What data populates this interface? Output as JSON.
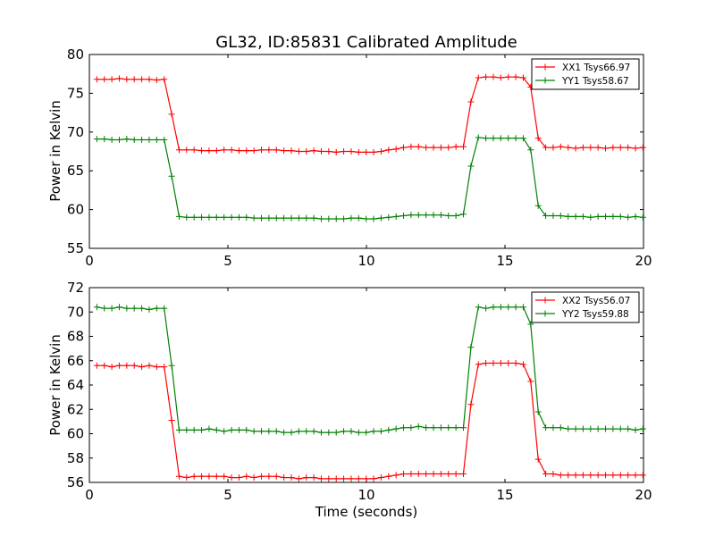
{
  "title": "GL32, ID:85831 Calibrated Amplitude",
  "chart_data": [
    {
      "type": "line",
      "title": "GL32, ID:85831 Calibrated Amplitude",
      "xlabel": "",
      "ylabel": "Power in Kelvin",
      "xlim": [
        0,
        20
      ],
      "ylim": [
        55,
        80
      ],
      "xticks": [
        "0",
        "5",
        "10",
        "15",
        "20"
      ],
      "yticks": [
        "55",
        "60",
        "65",
        "70",
        "75",
        "80"
      ],
      "legend_position": "top-right",
      "grid": false,
      "x": [
        0.27,
        0.54,
        0.81,
        1.08,
        1.35,
        1.62,
        1.89,
        2.16,
        2.43,
        2.7,
        2.97,
        3.24,
        3.51,
        3.78,
        4.05,
        4.32,
        4.59,
        4.86,
        5.13,
        5.4,
        5.67,
        5.94,
        6.21,
        6.48,
        6.75,
        7.02,
        7.29,
        7.56,
        7.83,
        8.1,
        8.37,
        8.64,
        8.91,
        9.18,
        9.45,
        9.72,
        9.99,
        10.26,
        10.53,
        10.8,
        11.07,
        11.34,
        11.61,
        11.88,
        12.15,
        12.42,
        12.69,
        12.96,
        13.23,
        13.5,
        13.77,
        14.04,
        14.31,
        14.58,
        14.85,
        15.12,
        15.39,
        15.66,
        15.93,
        16.2,
        16.47,
        16.74,
        17.01,
        17.28,
        17.55,
        17.82,
        18.09,
        18.36,
        18.63,
        18.9,
        19.17,
        19.44,
        19.71,
        19.98
      ],
      "series": [
        {
          "name": "XX1 Tsys66.97",
          "color": "#ff0000",
          "values": [
            76.8,
            76.8,
            76.8,
            76.9,
            76.8,
            76.8,
            76.8,
            76.8,
            76.7,
            76.8,
            72.3,
            67.7,
            67.7,
            67.7,
            67.6,
            67.6,
            67.6,
            67.7,
            67.7,
            67.6,
            67.6,
            67.6,
            67.7,
            67.7,
            67.7,
            67.6,
            67.6,
            67.5,
            67.5,
            67.6,
            67.5,
            67.5,
            67.4,
            67.5,
            67.5,
            67.4,
            67.4,
            67.4,
            67.5,
            67.7,
            67.8,
            68.0,
            68.1,
            68.1,
            68.0,
            68.0,
            68.0,
            68.0,
            68.1,
            68.1,
            73.9,
            77.0,
            77.1,
            77.1,
            77.0,
            77.1,
            77.1,
            77.0,
            75.8,
            69.2,
            68.0,
            68.0,
            68.1,
            68.0,
            67.9,
            68.0,
            68.0,
            68.0,
            67.9,
            68.0,
            68.0,
            68.0,
            67.9,
            68.0
          ]
        },
        {
          "name": "YY1 Tsys58.67",
          "color": "#008000",
          "values": [
            69.1,
            69.1,
            69.0,
            69.0,
            69.1,
            69.0,
            69.0,
            69.0,
            69.0,
            69.0,
            64.3,
            59.1,
            59.0,
            59.0,
            59.0,
            59.0,
            59.0,
            59.0,
            59.0,
            59.0,
            59.0,
            58.9,
            58.9,
            58.9,
            58.9,
            58.9,
            58.9,
            58.9,
            58.9,
            58.9,
            58.8,
            58.8,
            58.8,
            58.8,
            58.9,
            58.9,
            58.8,
            58.8,
            58.9,
            59.0,
            59.1,
            59.2,
            59.3,
            59.3,
            59.3,
            59.3,
            59.3,
            59.2,
            59.2,
            59.4,
            65.6,
            69.3,
            69.2,
            69.2,
            69.2,
            69.2,
            69.2,
            69.2,
            67.7,
            60.5,
            59.2,
            59.2,
            59.2,
            59.1,
            59.1,
            59.1,
            59.0,
            59.1,
            59.1,
            59.1,
            59.1,
            59.0,
            59.1,
            59.0
          ]
        }
      ]
    },
    {
      "type": "line",
      "title": "",
      "xlabel": "Time (seconds)",
      "ylabel": "Power in Kelvin",
      "xlim": [
        0,
        20
      ],
      "ylim": [
        56,
        72
      ],
      "xticks": [
        "0",
        "5",
        "10",
        "15",
        "20"
      ],
      "yticks": [
        "56",
        "58",
        "60",
        "62",
        "64",
        "66",
        "68",
        "70",
        "72"
      ],
      "legend_position": "top-right",
      "grid": false,
      "x": [
        0.27,
        0.54,
        0.81,
        1.08,
        1.35,
        1.62,
        1.89,
        2.16,
        2.43,
        2.7,
        2.97,
        3.24,
        3.51,
        3.78,
        4.05,
        4.32,
        4.59,
        4.86,
        5.13,
        5.4,
        5.67,
        5.94,
        6.21,
        6.48,
        6.75,
        7.02,
        7.29,
        7.56,
        7.83,
        8.1,
        8.37,
        8.64,
        8.91,
        9.18,
        9.45,
        9.72,
        9.99,
        10.26,
        10.53,
        10.8,
        11.07,
        11.34,
        11.61,
        11.88,
        12.15,
        12.42,
        12.69,
        12.96,
        13.23,
        13.5,
        13.77,
        14.04,
        14.31,
        14.58,
        14.85,
        15.12,
        15.39,
        15.66,
        15.93,
        16.2,
        16.47,
        16.74,
        17.01,
        17.28,
        17.55,
        17.82,
        18.09,
        18.36,
        18.63,
        18.9,
        19.17,
        19.44,
        19.71,
        19.98
      ],
      "series": [
        {
          "name": "XX2 Tsys56.07",
          "color": "#ff0000",
          "values": [
            65.6,
            65.6,
            65.5,
            65.6,
            65.6,
            65.6,
            65.5,
            65.6,
            65.5,
            65.5,
            61.1,
            56.5,
            56.4,
            56.5,
            56.5,
            56.5,
            56.5,
            56.5,
            56.4,
            56.4,
            56.5,
            56.4,
            56.5,
            56.5,
            56.5,
            56.4,
            56.4,
            56.3,
            56.4,
            56.4,
            56.3,
            56.3,
            56.3,
            56.3,
            56.3,
            56.3,
            56.3,
            56.3,
            56.4,
            56.5,
            56.6,
            56.7,
            56.7,
            56.7,
            56.7,
            56.7,
            56.7,
            56.7,
            56.7,
            56.7,
            62.4,
            65.7,
            65.8,
            65.8,
            65.8,
            65.8,
            65.8,
            65.7,
            64.3,
            57.9,
            56.7,
            56.7,
            56.6,
            56.6,
            56.6,
            56.6,
            56.6,
            56.6,
            56.6,
            56.6,
            56.6,
            56.6,
            56.6,
            56.6
          ]
        },
        {
          "name": "YY2 Tsys59.88",
          "color": "#008000",
          "values": [
            70.4,
            70.3,
            70.3,
            70.4,
            70.3,
            70.3,
            70.3,
            70.2,
            70.3,
            70.3,
            65.6,
            60.3,
            60.3,
            60.3,
            60.3,
            60.4,
            60.3,
            60.2,
            60.3,
            60.3,
            60.3,
            60.2,
            60.2,
            60.2,
            60.2,
            60.1,
            60.1,
            60.2,
            60.2,
            60.2,
            60.1,
            60.1,
            60.1,
            60.2,
            60.2,
            60.1,
            60.1,
            60.2,
            60.2,
            60.3,
            60.4,
            60.5,
            60.5,
            60.6,
            60.5,
            60.5,
            60.5,
            60.5,
            60.5,
            60.5,
            67.1,
            70.4,
            70.3,
            70.4,
            70.4,
            70.4,
            70.4,
            70.4,
            69.0,
            61.8,
            60.5,
            60.5,
            60.5,
            60.4,
            60.4,
            60.4,
            60.4,
            60.4,
            60.4,
            60.4,
            60.4,
            60.4,
            60.3,
            60.4
          ]
        }
      ]
    }
  ]
}
